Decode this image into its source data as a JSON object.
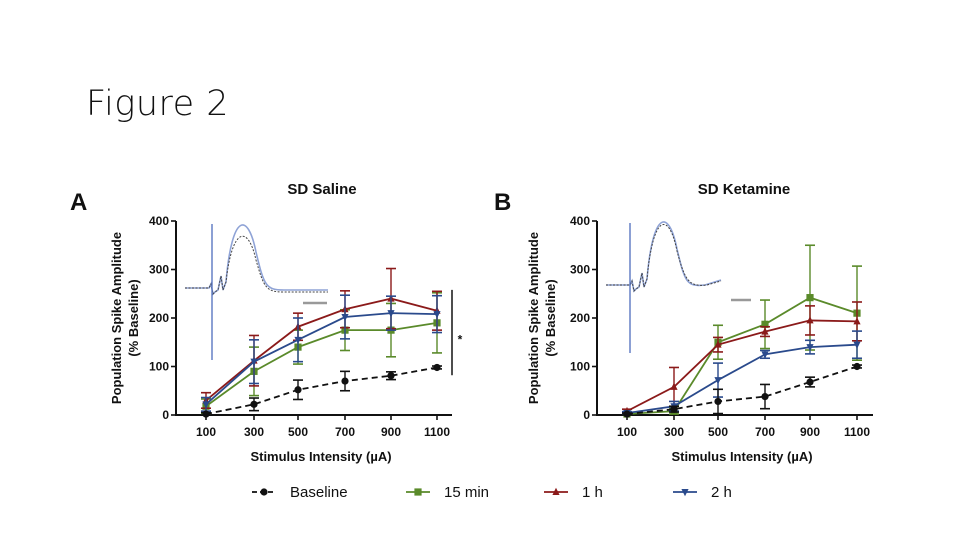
{
  "slide": {
    "title": "Figure 2"
  },
  "legend": [
    {
      "label": "Baseline",
      "color": "#111111",
      "marker": "circle",
      "dash": true
    },
    {
      "label": "15 min",
      "color": "#5a8a2a",
      "marker": "square",
      "dash": false
    },
    {
      "label": "1 h",
      "color": "#8b1a1a",
      "marker": "triangle-up",
      "dash": false
    },
    {
      "label": "2 h",
      "color": "#2a4a8c",
      "marker": "triangle-down",
      "dash": false
    }
  ],
  "chart_data": [
    {
      "type": "line",
      "panel_letter": "A",
      "title": "SD Saline",
      "xlabel": "Stimulus Intensity (µA)",
      "ylabel": [
        "Population Spike Amplitude",
        "(% Baseline)"
      ],
      "x": [
        100,
        300,
        500,
        700,
        900,
        1100
      ],
      "x_tick_labels": [
        "100",
        "300",
        "500",
        "700",
        "900",
        "1100"
      ],
      "yticks": [
        0,
        100,
        200,
        300,
        400
      ],
      "ylim": [
        0,
        400
      ],
      "grid": false,
      "significance": "*",
      "series": [
        {
          "name": "Baseline",
          "values": [
            2,
            22,
            52,
            70,
            81,
            98
          ],
          "errors": [
            3,
            13,
            20,
            20,
            8,
            3
          ]
        },
        {
          "name": "15 min",
          "values": [
            18,
            90,
            140,
            175,
            175,
            190
          ],
          "errors": [
            15,
            50,
            35,
            42,
            55,
            62
          ]
        },
        {
          "name": "1 h",
          "values": [
            30,
            112,
            182,
            218,
            240,
            215
          ],
          "errors": [
            16,
            52,
            28,
            38,
            62,
            40
          ]
        },
        {
          "name": "2 h",
          "values": [
            22,
            110,
            155,
            202,
            210,
            208
          ],
          "errors": [
            14,
            45,
            45,
            45,
            35,
            38
          ]
        }
      ]
    },
    {
      "type": "line",
      "panel_letter": "B",
      "title": "SD Ketamine",
      "xlabel": "Stimulus Intensity (µA)",
      "ylabel": [
        "Population Spike Amplitude",
        "(% Baseline)"
      ],
      "x": [
        100,
        300,
        500,
        700,
        900,
        1100
      ],
      "x_tick_labels": [
        "100",
        "300",
        "500",
        "700",
        "900",
        "1100"
      ],
      "yticks": [
        0,
        100,
        200,
        300,
        400
      ],
      "ylim": [
        0,
        400
      ],
      "grid": false,
      "series": [
        {
          "name": "Baseline",
          "values": [
            2,
            12,
            28,
            38,
            68,
            100
          ],
          "errors": [
            2,
            6,
            25,
            25,
            10,
            3
          ]
        },
        {
          "name": "15 min",
          "values": [
            2,
            8,
            150,
            187,
            242,
            210
          ],
          "errors": [
            3,
            6,
            35,
            50,
            108,
            97
          ]
        },
        {
          "name": "1 h",
          "values": [
            8,
            58,
            145,
            172,
            195,
            193
          ],
          "errors": [
            4,
            40,
            15,
            10,
            30,
            40
          ]
        },
        {
          "name": "2 h",
          "values": [
            4,
            18,
            72,
            125,
            140,
            145
          ],
          "errors": [
            3,
            10,
            35,
            8,
            14,
            28
          ]
        }
      ]
    }
  ]
}
